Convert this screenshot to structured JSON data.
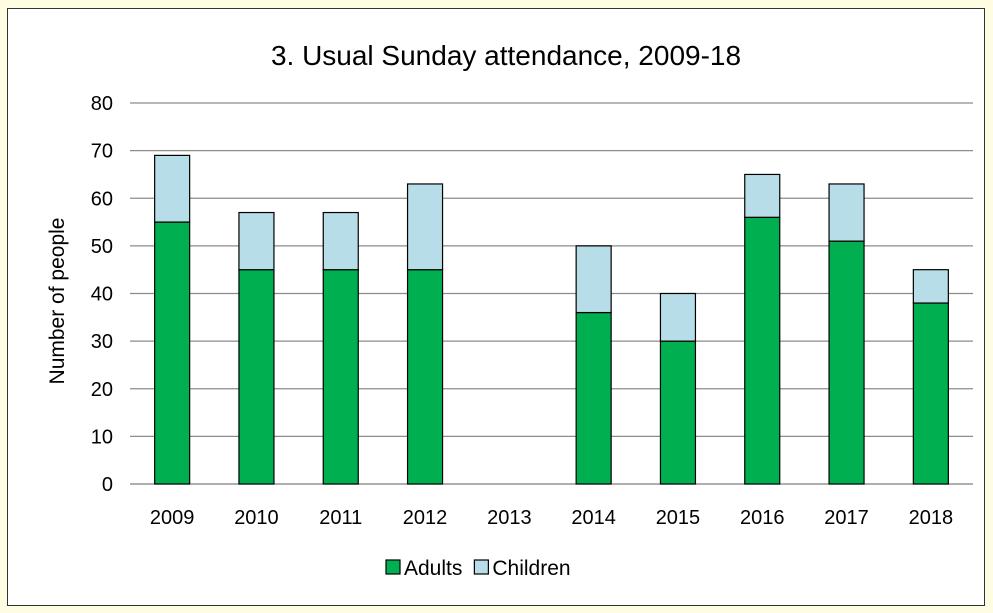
{
  "chart_data": {
    "type": "bar",
    "stacked": true,
    "title": "3. Usual Sunday attendance, 2009-18",
    "xlabel": "",
    "ylabel": "Number of people",
    "ylim": [
      0,
      80
    ],
    "yticks": [
      0,
      10,
      20,
      30,
      40,
      50,
      60,
      70,
      80
    ],
    "grid": true,
    "legend_position": "bottom",
    "categories": [
      "2009",
      "2010",
      "2011",
      "2012",
      "2013",
      "2014",
      "2015",
      "2016",
      "2017",
      "2018"
    ],
    "series": [
      {
        "name": "Adults",
        "color": "#00b050",
        "values": [
          55,
          45,
          45,
          45,
          0,
          36,
          30,
          56,
          51,
          38
        ]
      },
      {
        "name": "Children",
        "color": "#b7dee8",
        "values": [
          14,
          12,
          12,
          18,
          0,
          14,
          10,
          9,
          12,
          7
        ]
      }
    ]
  }
}
